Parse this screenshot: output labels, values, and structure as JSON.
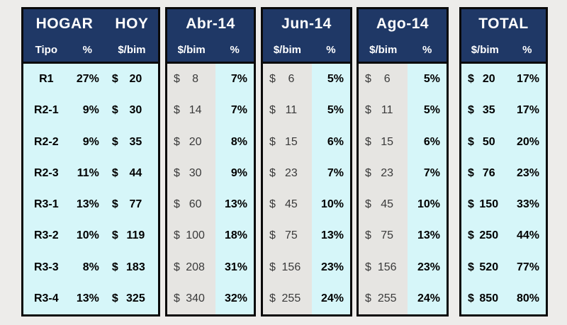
{
  "currency": "$",
  "colors": {
    "page_bg": "#EDECEA",
    "header_bg": "#1F3866",
    "header_text": "#FFFFFF",
    "body_bg": "#D6F6F9",
    "money_column_bg": "#E6E5E2",
    "border": "#0A0A0A",
    "money_text_dim": "#3A3A3A"
  },
  "panels": {
    "hogar": {
      "title_left": "HOGAR",
      "title_right": "HOY",
      "col_tipo": "Tipo",
      "col_pct": "%",
      "col_amt": "$/bim",
      "rows": [
        {
          "tipo": "R1",
          "pct": "27%",
          "amt": "20"
        },
        {
          "tipo": "R2-1",
          "pct": "9%",
          "amt": "30"
        },
        {
          "tipo": "R2-2",
          "pct": "9%",
          "amt": "35"
        },
        {
          "tipo": "R2-3",
          "pct": "11%",
          "amt": "44"
        },
        {
          "tipo": "R3-1",
          "pct": "13%",
          "amt": "77"
        },
        {
          "tipo": "R3-2",
          "pct": "10%",
          "amt": "119"
        },
        {
          "tipo": "R3-3",
          "pct": "8%",
          "amt": "183"
        },
        {
          "tipo": "R3-4",
          "pct": "13%",
          "amt": "325"
        }
      ]
    },
    "abr": {
      "title": "Abr-14",
      "col_amt": "$/bim",
      "col_pct": "%",
      "rows": [
        {
          "amt": "8",
          "pct": "7%"
        },
        {
          "amt": "14",
          "pct": "7%"
        },
        {
          "amt": "20",
          "pct": "8%"
        },
        {
          "amt": "30",
          "pct": "9%"
        },
        {
          "amt": "60",
          "pct": "13%"
        },
        {
          "amt": "100",
          "pct": "18%"
        },
        {
          "amt": "208",
          "pct": "31%"
        },
        {
          "amt": "340",
          "pct": "32%"
        }
      ]
    },
    "jun": {
      "title": "Jun-14",
      "col_amt": "$/bim",
      "col_pct": "%",
      "rows": [
        {
          "amt": "6",
          "pct": "5%"
        },
        {
          "amt": "11",
          "pct": "5%"
        },
        {
          "amt": "15",
          "pct": "6%"
        },
        {
          "amt": "23",
          "pct": "7%"
        },
        {
          "amt": "45",
          "pct": "10%"
        },
        {
          "amt": "75",
          "pct": "13%"
        },
        {
          "amt": "156",
          "pct": "23%"
        },
        {
          "amt": "255",
          "pct": "24%"
        }
      ]
    },
    "ago": {
      "title": "Ago-14",
      "col_amt": "$/bim",
      "col_pct": "%",
      "rows": [
        {
          "amt": "6",
          "pct": "5%"
        },
        {
          "amt": "11",
          "pct": "5%"
        },
        {
          "amt": "15",
          "pct": "6%"
        },
        {
          "amt": "23",
          "pct": "7%"
        },
        {
          "amt": "45",
          "pct": "10%"
        },
        {
          "amt": "75",
          "pct": "13%"
        },
        {
          "amt": "156",
          "pct": "23%"
        },
        {
          "amt": "255",
          "pct": "24%"
        }
      ]
    },
    "total": {
      "title": "TOTAL",
      "col_amt": "$/bim",
      "col_pct": "%",
      "rows": [
        {
          "amt": "20",
          "pct": "17%"
        },
        {
          "amt": "35",
          "pct": "17%"
        },
        {
          "amt": "50",
          "pct": "20%"
        },
        {
          "amt": "76",
          "pct": "23%"
        },
        {
          "amt": "150",
          "pct": "33%"
        },
        {
          "amt": "250",
          "pct": "44%"
        },
        {
          "amt": "520",
          "pct": "77%"
        },
        {
          "amt": "850",
          "pct": "80%"
        }
      ]
    }
  },
  "chart_data": {
    "type": "table",
    "categories": [
      "R1",
      "R2-1",
      "R2-2",
      "R2-3",
      "R3-1",
      "R3-2",
      "R3-3",
      "R3-4"
    ],
    "series": [
      {
        "name": "HOGAR HOY %",
        "values": [
          27,
          9,
          9,
          11,
          13,
          10,
          8,
          13
        ]
      },
      {
        "name": "HOGAR HOY $/bim",
        "values": [
          20,
          30,
          35,
          44,
          77,
          119,
          183,
          325
        ]
      },
      {
        "name": "Abr-14 $/bim",
        "values": [
          8,
          14,
          20,
          30,
          60,
          100,
          208,
          340
        ]
      },
      {
        "name": "Abr-14 %",
        "values": [
          7,
          7,
          8,
          9,
          13,
          18,
          31,
          32
        ]
      },
      {
        "name": "Jun-14 $/bim",
        "values": [
          6,
          11,
          15,
          23,
          45,
          75,
          156,
          255
        ]
      },
      {
        "name": "Jun-14 %",
        "values": [
          5,
          5,
          6,
          7,
          10,
          13,
          23,
          24
        ]
      },
      {
        "name": "Ago-14 $/bim",
        "values": [
          6,
          11,
          15,
          23,
          45,
          75,
          156,
          255
        ]
      },
      {
        "name": "Ago-14 %",
        "values": [
          5,
          5,
          6,
          7,
          10,
          13,
          23,
          24
        ]
      },
      {
        "name": "TOTAL $/bim",
        "values": [
          20,
          35,
          50,
          76,
          150,
          250,
          520,
          850
        ]
      },
      {
        "name": "TOTAL %",
        "values": [
          17,
          17,
          20,
          23,
          33,
          44,
          77,
          80
        ]
      }
    ]
  }
}
